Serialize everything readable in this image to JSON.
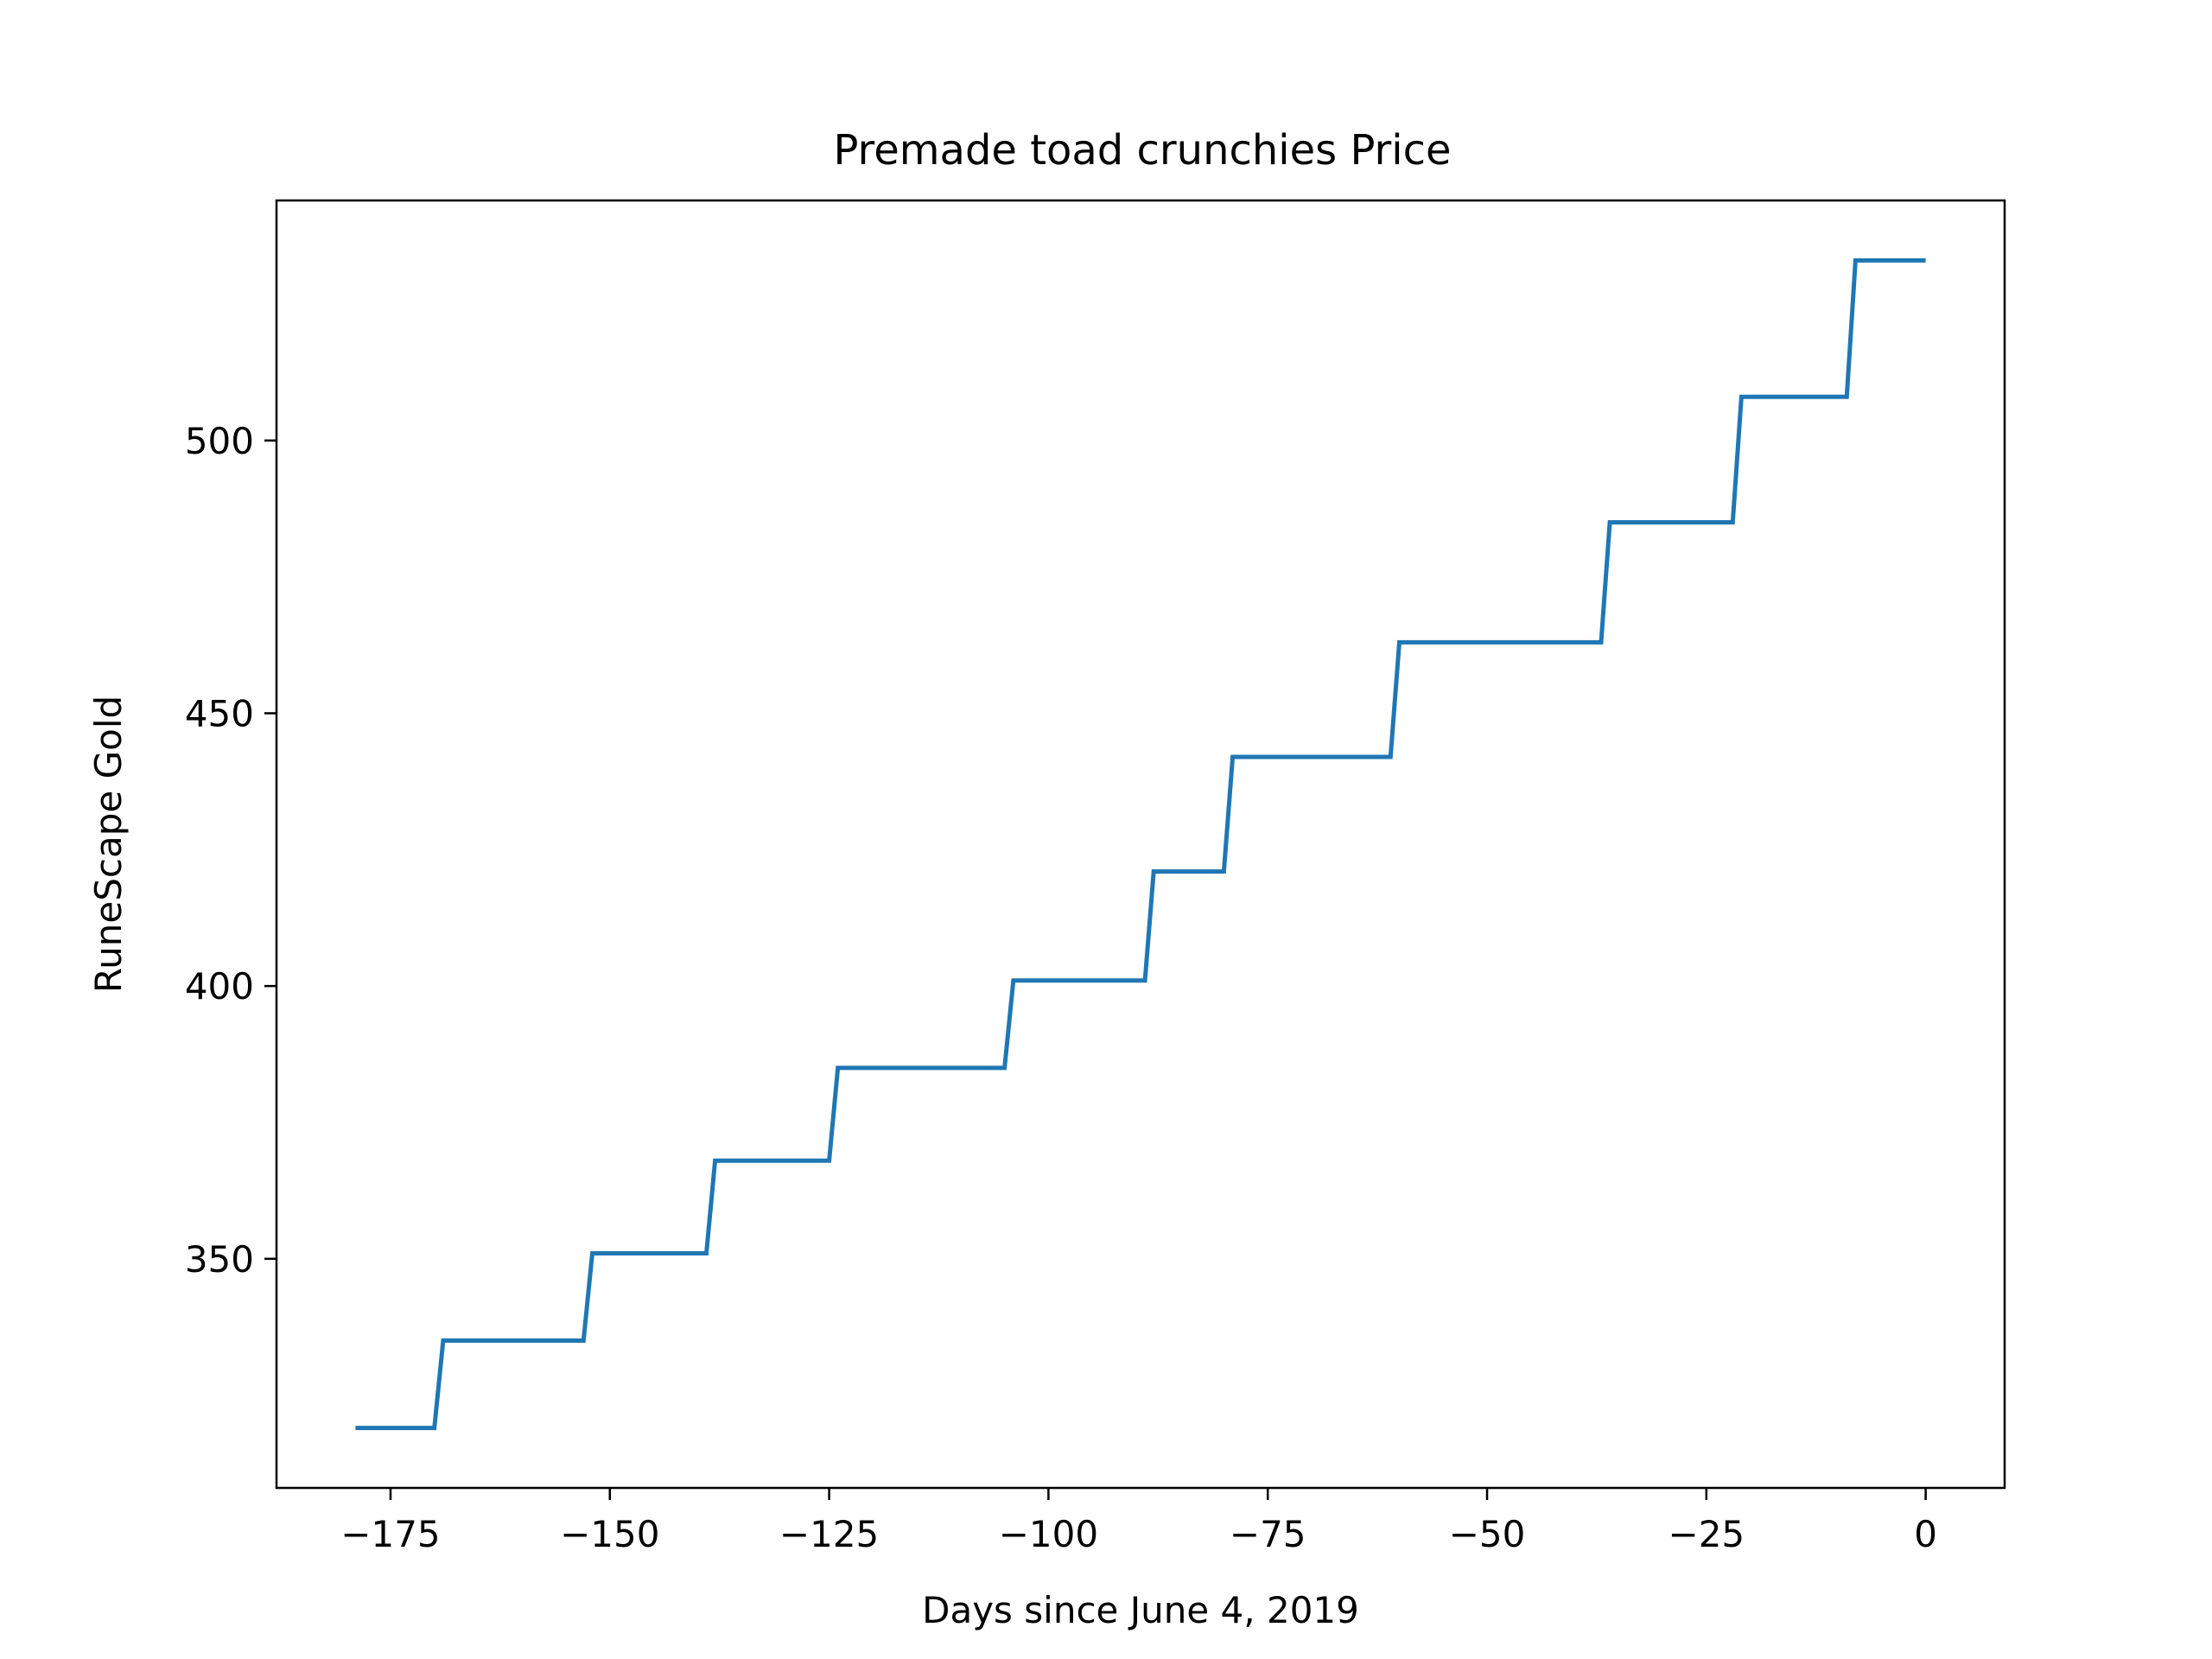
{
  "chart_data": {
    "type": "line",
    "title": "Premade toad crunchies Price",
    "xlabel": "Days since June 4, 2019",
    "ylabel": "RuneScape Gold",
    "xlim": [
      -188,
      9
    ],
    "ylim": [
      308,
      544
    ],
    "xticks": [
      -175,
      -150,
      -125,
      -100,
      -75,
      -50,
      -25,
      0
    ],
    "xtick_labels": [
      "−175",
      "−150",
      "−125",
      "−100",
      "−75",
      "−50",
      "−25",
      "0"
    ],
    "yticks": [
      350,
      400,
      450,
      500
    ],
    "ytick_labels": [
      "350",
      "400",
      "450",
      "500"
    ],
    "grid": false,
    "legend": "none",
    "series": [
      {
        "color": "#1f77b4",
        "x": [
          -179,
          -170,
          -169,
          -153,
          -152,
          -139,
          -138,
          -125,
          -124,
          -105,
          -104,
          -89,
          -88,
          -80,
          -79,
          -61,
          -60,
          -37,
          -36,
          -22,
          -21,
          -9,
          -8,
          0
        ],
        "y": [
          319,
          319,
          335,
          335,
          351,
          351,
          368,
          368,
          385,
          385,
          401,
          401,
          421,
          421,
          442,
          442,
          463,
          463,
          485,
          485,
          508,
          508,
          533,
          533
        ]
      }
    ]
  }
}
